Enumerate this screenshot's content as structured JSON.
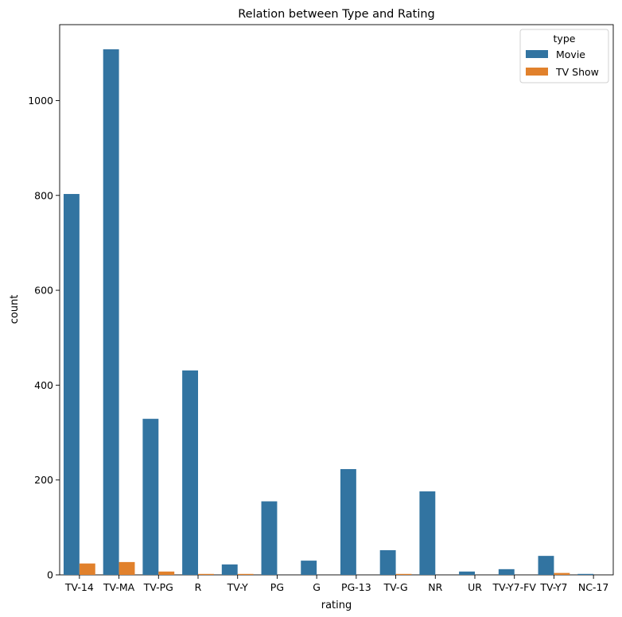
{
  "chart_data": {
    "type": "bar",
    "title": "Relation between Type and Rating",
    "xlabel": "rating",
    "ylabel": "count",
    "ylim": [
      0,
      1160
    ],
    "yticks": [
      0,
      200,
      400,
      600,
      800,
      1000
    ],
    "grid": false,
    "legend": {
      "title": "type",
      "placement": "top-right"
    },
    "categories": [
      "TV-14",
      "TV-MA",
      "TV-PG",
      "R",
      "TV-Y",
      "PG",
      "G",
      "PG-13",
      "TV-G",
      "NR",
      "UR",
      "TV-Y7-FV",
      "TV-Y7",
      "NC-17"
    ],
    "series": [
      {
        "name": "Movie",
        "color": "#3274a1",
        "values": [
          803,
          1108,
          329,
          431,
          22,
          155,
          30,
          223,
          52,
          176,
          7,
          12,
          40,
          2
        ]
      },
      {
        "name": "TV Show",
        "color": "#e1812c",
        "values": [
          24,
          27,
          7,
          2,
          2,
          0,
          0,
          0,
          2,
          0,
          0,
          0,
          4,
          0
        ]
      }
    ]
  }
}
